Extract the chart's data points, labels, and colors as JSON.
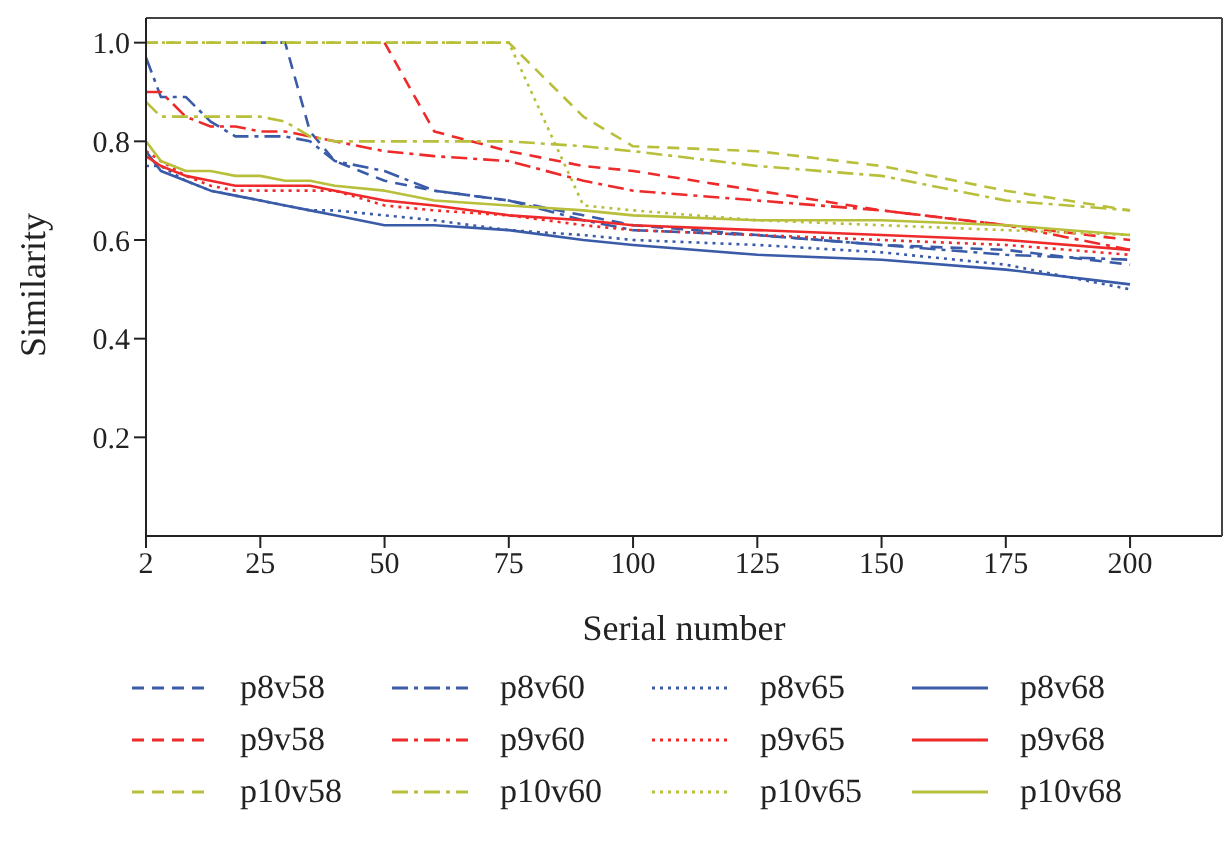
{
  "chart_data": {
    "type": "line",
    "xlabel": "Serial number",
    "ylabel": "Similarity",
    "xlim": [
      2,
      218.5
    ],
    "xticks": [
      2,
      25,
      50,
      75,
      100,
      125,
      150,
      175,
      200
    ],
    "ylim": [
      0,
      1.05
    ],
    "yticks": [
      {
        "value": 0.2,
        "label": "0.2"
      },
      {
        "value": 0.4,
        "label": "0.4"
      },
      {
        "value": 0.6,
        "label": "0.6"
      },
      {
        "value": 0.8,
        "label": "0.8"
      },
      {
        "value": 1,
        "label": "1.0"
      }
    ],
    "grid": false,
    "legend": "bottom",
    "marker": "none",
    "x": [
      2,
      5,
      10,
      15,
      20,
      25,
      30,
      35,
      40,
      50,
      60,
      75,
      90,
      100,
      125,
      150,
      175,
      200
    ],
    "series": [
      {
        "name": "p8v58",
        "color": "#3a5ba8",
        "line_style": "dashed",
        "values": [
          null,
          null,
          null,
          null,
          null,
          1,
          1,
          0.82,
          0.76,
          0.72,
          0.7,
          0.68,
          0.65,
          0.63,
          0.61,
          0.59,
          0.58,
          0.55
        ]
      },
      {
        "name": "p8v60",
        "color": "#3a5ba8",
        "line_style": "dashdot",
        "values": [
          0.97,
          0.89,
          0.89,
          0.84,
          0.81,
          0.81,
          0.81,
          0.8,
          0.76,
          0.74,
          0.7,
          0.68,
          0.64,
          0.62,
          0.61,
          0.59,
          0.57,
          0.56
        ]
      },
      {
        "name": "p8v65",
        "color": "#3a5ba8",
        "line_style": "dotted",
        "values": [
          0.75,
          0.75,
          0.72,
          0.7,
          0.69,
          0.68,
          0.67,
          0.66,
          0.66,
          0.65,
          0.64,
          0.62,
          0.61,
          0.6,
          0.59,
          0.575,
          0.55,
          0.5
        ]
      },
      {
        "name": "p8v68",
        "color": "#3a5ba8",
        "line_style": "solid",
        "values": [
          0.78,
          0.74,
          0.72,
          0.7,
          0.69,
          0.68,
          0.67,
          0.66,
          0.65,
          0.63,
          0.63,
          0.62,
          0.6,
          0.59,
          0.57,
          0.56,
          0.54,
          0.51
        ]
      },
      {
        "name": "p9v58",
        "color": "#ee2a2a",
        "line_style": "dashed",
        "values": [
          null,
          null,
          null,
          null,
          null,
          null,
          null,
          null,
          null,
          1,
          0.82,
          0.78,
          0.75,
          0.74,
          0.7,
          0.66,
          0.63,
          0.6
        ]
      },
      {
        "name": "p9v60",
        "color": "#ee2a2a",
        "line_style": "dashdot",
        "values": [
          0.9,
          0.9,
          0.85,
          0.83,
          0.83,
          0.82,
          0.82,
          0.81,
          0.8,
          0.78,
          0.77,
          0.76,
          0.72,
          0.7,
          0.68,
          0.66,
          0.63,
          0.58
        ]
      },
      {
        "name": "p9v65",
        "color": "#ee2a2a",
        "line_style": "dotted",
        "values": [
          0.78,
          0.76,
          0.73,
          0.71,
          0.7,
          0.7,
          0.7,
          0.7,
          0.7,
          0.67,
          0.66,
          0.65,
          0.63,
          0.62,
          0.61,
          0.6,
          0.59,
          0.57
        ]
      },
      {
        "name": "p9v68",
        "color": "#ee2a2a",
        "line_style": "solid",
        "values": [
          0.77,
          0.75,
          0.73,
          0.72,
          0.71,
          0.71,
          0.71,
          0.71,
          0.7,
          0.68,
          0.67,
          0.65,
          0.64,
          0.63,
          0.62,
          0.61,
          0.6,
          0.58
        ]
      },
      {
        "name": "p10v58",
        "color": "#b8bf3a",
        "line_style": "dashed",
        "values": [
          1,
          1,
          1,
          1,
          1,
          1,
          1,
          1,
          1,
          1,
          1,
          1,
          0.85,
          0.79,
          0.78,
          0.75,
          0.7,
          0.66
        ]
      },
      {
        "name": "p10v60",
        "color": "#b8bf3a",
        "line_style": "dashdot",
        "values": [
          0.88,
          0.85,
          0.85,
          0.85,
          0.85,
          0.85,
          0.84,
          0.81,
          0.8,
          0.8,
          0.8,
          0.8,
          0.79,
          0.78,
          0.75,
          0.73,
          0.68,
          0.66
        ]
      },
      {
        "name": "p10v65",
        "color": "#b8bf3a",
        "line_style": "dotted",
        "values": [
          1,
          1,
          1,
          1,
          1,
          1,
          1,
          1,
          1,
          1,
          1,
          1,
          0.67,
          0.66,
          0.64,
          0.63,
          0.62,
          0.61
        ]
      },
      {
        "name": "p10v68",
        "color": "#b8bf3a",
        "line_style": "solid",
        "values": [
          0.8,
          0.76,
          0.74,
          0.74,
          0.73,
          0.73,
          0.72,
          0.72,
          0.71,
          0.7,
          0.68,
          0.67,
          0.66,
          0.65,
          0.64,
          0.64,
          0.63,
          0.61
        ]
      }
    ]
  }
}
